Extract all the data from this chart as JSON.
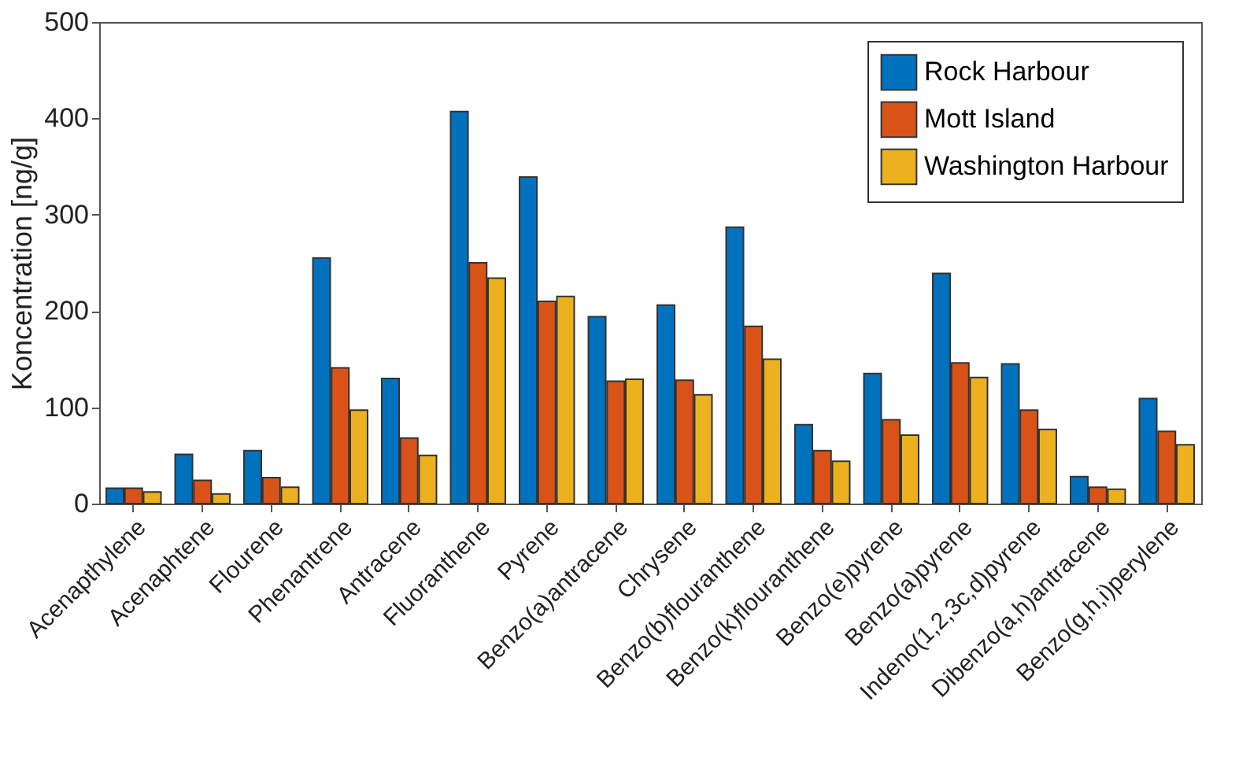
{
  "chart_data": {
    "type": "bar",
    "ylabel": "Koncentration [ng/g]",
    "categories": [
      "Acenapthylene",
      "Acenaphtene",
      "Flourene",
      "Phenantrene",
      "Antracene",
      "Fluoranthene",
      "Pyrene",
      "Benzo(a)antracene",
      "Chrysene",
      "Benzo(b)flouranthene",
      "Benzo(k)flouranthene",
      "Benzo(e)pyrene",
      "Benzo(a)pyrene",
      "Indeno(1,2,3c,d)pyrene",
      "Dibenzo(a,h)antracene",
      "Benzo(g,h,i)perylene"
    ],
    "series": [
      {
        "name": "Rock Harbour",
        "color": "#0072bd",
        "values": [
          16,
          51,
          55,
          255,
          130,
          407,
          339,
          194,
          206,
          287,
          82,
          135,
          239,
          145,
          28,
          109
        ]
      },
      {
        "name": "Mott Island",
        "color": "#d95319",
        "values": [
          16,
          24,
          27,
          141,
          68,
          250,
          210,
          127,
          128,
          184,
          55,
          87,
          146,
          97,
          17,
          75
        ]
      },
      {
        "name": "Washington Harbour",
        "color": "#edb120",
        "values": [
          12,
          10,
          17,
          97,
          50,
          234,
          215,
          129,
          113,
          150,
          44,
          71,
          131,
          77,
          15,
          61
        ]
      }
    ],
    "ylim": [
      0,
      500
    ],
    "yticks": [
      0,
      100,
      200,
      300,
      400,
      500
    ],
    "grid": false,
    "legend": "top right"
  }
}
